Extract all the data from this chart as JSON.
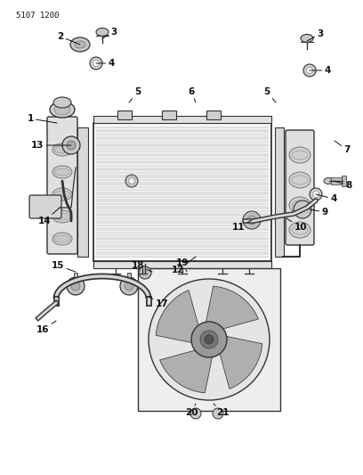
{
  "title": "5107 1200",
  "bg_color": "#ffffff",
  "line_color": "#333333",
  "label_color": "#111111",
  "fig_width": 4.08,
  "fig_height": 5.33,
  "dpi": 100
}
